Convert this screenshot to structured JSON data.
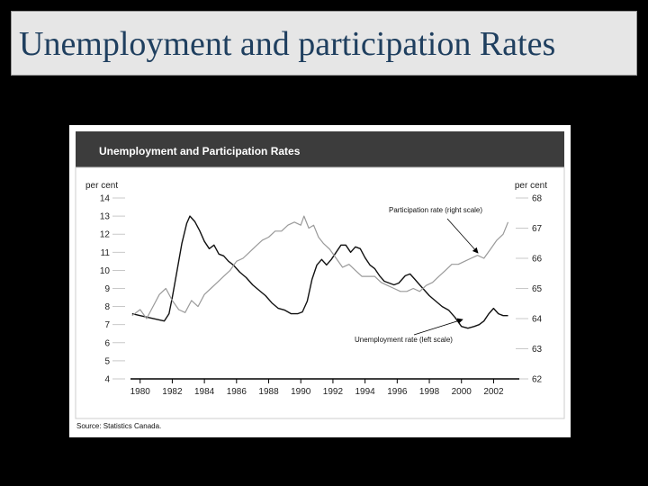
{
  "slide": {
    "title": "Unemployment and participation Rates",
    "background": "#000000"
  },
  "chart_data": {
    "type": "line",
    "title": "Unemployment and Participation Rates",
    "source": "Source: Statistics Canada.",
    "left_axis": {
      "label": "per cent",
      "min": 4,
      "max": 14,
      "ticks": [
        "4",
        "5",
        "6",
        "7",
        "8",
        "9",
        "10",
        "11",
        "12",
        "13",
        "14"
      ]
    },
    "right_axis": {
      "label": "per cent",
      "min": 62,
      "max": 68,
      "ticks": [
        "62",
        "63",
        "64",
        "65",
        "66",
        "67",
        "68"
      ]
    },
    "x_axis": {
      "min": 1979.4,
      "max": 2003.6,
      "ticks": [
        "1980",
        "1982",
        "1984",
        "1986",
        "1988",
        "1990",
        "1992",
        "1994",
        "1996",
        "1998",
        "2000",
        "2002"
      ]
    },
    "grid": false,
    "series": [
      {
        "name": "Unemployment rate (left scale)",
        "axis": "left",
        "color": "#111111",
        "points": [
          [
            1979.5,
            7.6
          ],
          [
            1980.0,
            7.5
          ],
          [
            1980.5,
            7.4
          ],
          [
            1981.0,
            7.3
          ],
          [
            1981.5,
            7.2
          ],
          [
            1981.8,
            7.6
          ],
          [
            1982.0,
            8.5
          ],
          [
            1982.3,
            10.0
          ],
          [
            1982.6,
            11.5
          ],
          [
            1982.9,
            12.6
          ],
          [
            1983.1,
            13.0
          ],
          [
            1983.4,
            12.7
          ],
          [
            1983.7,
            12.2
          ],
          [
            1984.0,
            11.6
          ],
          [
            1984.3,
            11.2
          ],
          [
            1984.6,
            11.4
          ],
          [
            1984.9,
            10.9
          ],
          [
            1985.2,
            10.8
          ],
          [
            1985.5,
            10.5
          ],
          [
            1985.8,
            10.3
          ],
          [
            1986.2,
            9.9
          ],
          [
            1986.6,
            9.6
          ],
          [
            1987.0,
            9.2
          ],
          [
            1987.4,
            8.9
          ],
          [
            1987.8,
            8.6
          ],
          [
            1988.2,
            8.2
          ],
          [
            1988.6,
            7.9
          ],
          [
            1989.0,
            7.8
          ],
          [
            1989.4,
            7.6
          ],
          [
            1989.8,
            7.6
          ],
          [
            1990.1,
            7.7
          ],
          [
            1990.4,
            8.3
          ],
          [
            1990.7,
            9.5
          ],
          [
            1991.0,
            10.3
          ],
          [
            1991.3,
            10.6
          ],
          [
            1991.6,
            10.3
          ],
          [
            1991.9,
            10.6
          ],
          [
            1992.2,
            11.0
          ],
          [
            1992.5,
            11.4
          ],
          [
            1992.8,
            11.4
          ],
          [
            1993.1,
            11.0
          ],
          [
            1993.4,
            11.3
          ],
          [
            1993.7,
            11.2
          ],
          [
            1994.0,
            10.7
          ],
          [
            1994.3,
            10.3
          ],
          [
            1994.6,
            10.1
          ],
          [
            1994.9,
            9.7
          ],
          [
            1995.2,
            9.4
          ],
          [
            1995.5,
            9.3
          ],
          [
            1995.8,
            9.2
          ],
          [
            1996.1,
            9.3
          ],
          [
            1996.5,
            9.7
          ],
          [
            1996.8,
            9.8
          ],
          [
            1997.1,
            9.5
          ],
          [
            1997.4,
            9.2
          ],
          [
            1997.7,
            8.9
          ],
          [
            1998.0,
            8.6
          ],
          [
            1998.4,
            8.3
          ],
          [
            1998.8,
            8.0
          ],
          [
            1999.2,
            7.8
          ],
          [
            1999.6,
            7.4
          ],
          [
            2000.0,
            6.9
          ],
          [
            2000.4,
            6.8
          ],
          [
            2000.8,
            6.9
          ],
          [
            2001.1,
            7.0
          ],
          [
            2001.4,
            7.2
          ],
          [
            2001.7,
            7.6
          ],
          [
            2002.0,
            7.9
          ],
          [
            2002.3,
            7.6
          ],
          [
            2002.6,
            7.5
          ],
          [
            2002.9,
            7.5
          ]
        ]
      },
      {
        "name": "Participation rate (right scale)",
        "axis": "right",
        "color": "#9a9a9a",
        "points": [
          [
            1979.5,
            64.1
          ],
          [
            1980.0,
            64.3
          ],
          [
            1980.4,
            64.0
          ],
          [
            1980.8,
            64.4
          ],
          [
            1981.2,
            64.8
          ],
          [
            1981.6,
            65.0
          ],
          [
            1982.0,
            64.6
          ],
          [
            1982.4,
            64.3
          ],
          [
            1982.8,
            64.2
          ],
          [
            1983.2,
            64.6
          ],
          [
            1983.6,
            64.4
          ],
          [
            1984.0,
            64.8
          ],
          [
            1984.4,
            65.0
          ],
          [
            1984.8,
            65.2
          ],
          [
            1985.2,
            65.4
          ],
          [
            1985.6,
            65.6
          ],
          [
            1986.0,
            65.9
          ],
          [
            1986.4,
            66.0
          ],
          [
            1986.8,
            66.2
          ],
          [
            1987.2,
            66.4
          ],
          [
            1987.6,
            66.6
          ],
          [
            1988.0,
            66.7
          ],
          [
            1988.4,
            66.9
          ],
          [
            1988.8,
            66.9
          ],
          [
            1989.2,
            67.1
          ],
          [
            1989.6,
            67.2
          ],
          [
            1990.0,
            67.1
          ],
          [
            1990.2,
            67.4
          ],
          [
            1990.5,
            67.0
          ],
          [
            1990.8,
            67.1
          ],
          [
            1991.1,
            66.7
          ],
          [
            1991.4,
            66.5
          ],
          [
            1991.8,
            66.3
          ],
          [
            1992.2,
            66.0
          ],
          [
            1992.6,
            65.7
          ],
          [
            1993.0,
            65.8
          ],
          [
            1993.4,
            65.6
          ],
          [
            1993.8,
            65.4
          ],
          [
            1994.2,
            65.4
          ],
          [
            1994.6,
            65.4
          ],
          [
            1995.0,
            65.2
          ],
          [
            1995.4,
            65.1
          ],
          [
            1995.8,
            65.0
          ],
          [
            1996.2,
            64.9
          ],
          [
            1996.6,
            64.9
          ],
          [
            1997.0,
            65.0
          ],
          [
            1997.4,
            64.9
          ],
          [
            1997.8,
            65.1
          ],
          [
            1998.2,
            65.2
          ],
          [
            1998.6,
            65.4
          ],
          [
            1999.0,
            65.6
          ],
          [
            1999.4,
            65.8
          ],
          [
            1999.8,
            65.8
          ],
          [
            2000.2,
            65.9
          ],
          [
            2000.6,
            66.0
          ],
          [
            2001.0,
            66.1
          ],
          [
            2001.4,
            66.0
          ],
          [
            2001.8,
            66.3
          ],
          [
            2002.2,
            66.6
          ],
          [
            2002.6,
            66.8
          ],
          [
            2002.9,
            67.2
          ]
        ]
      }
    ],
    "annotations": [
      {
        "text": "Participation rate (right scale)",
        "series": 1
      },
      {
        "text": "Unemployment rate (left scale)",
        "series": 0
      }
    ],
    "legend": "inline annotations with arrows"
  }
}
